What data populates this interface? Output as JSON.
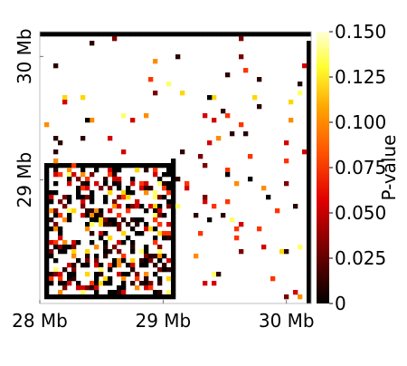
{
  "chart_data": {
    "type": "heatmap",
    "title": "",
    "xlabel": "",
    "ylabel": "",
    "x_ticks": [
      "28 Mb",
      "29 Mb",
      "30 Mb"
    ],
    "y_ticks": [
      "29 Mb",
      "30 Mb"
    ],
    "xlim": [
      28.0,
      30.2
    ],
    "ylim": [
      28.0,
      30.2
    ],
    "colorbar": {
      "label": "P-value",
      "ticks": [
        "0",
        "0.025",
        "0.050",
        "0.075",
        "0.100",
        "0.125",
        "0.150"
      ],
      "tick_values": [
        0,
        0.025,
        0.05,
        0.075,
        0.1,
        0.125,
        0.15
      ],
      "range": [
        0,
        0.15
      ],
      "colormap": "hot",
      "colors": [
        "#000000",
        "#8b0000",
        "#ff0000",
        "#ff8c00",
        "#ffff00",
        "#ffffe0"
      ]
    },
    "grid": false,
    "description_of_pattern": ""
  }
}
